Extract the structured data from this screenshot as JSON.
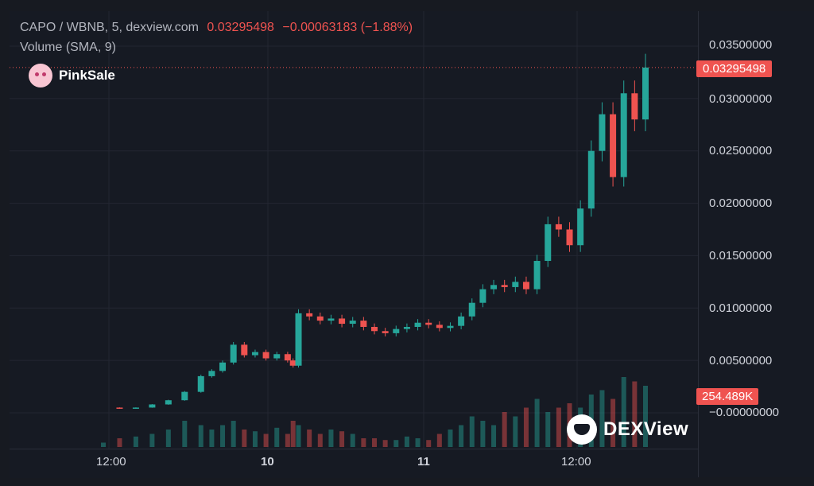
{
  "header": {
    "symbol": "CAPO / WBNB, 5, dexview.com",
    "last_price": "0.03295498",
    "change": "−0.00063183 (−1.88%)",
    "volume_indicator": "Volume (SMA, 9)"
  },
  "branding": {
    "pinksale": "PinkSale",
    "dexview": "DEXView"
  },
  "price_axis": {
    "ticks": [
      "0.03500000",
      "0.03000000",
      "0.02500000",
      "0.02000000",
      "0.01500000",
      "0.01000000",
      "0.00500000",
      "−0.00000000"
    ],
    "current_price_tag": "0.03295498",
    "volume_tag": "254.489K"
  },
  "time_axis": {
    "labels": [
      "12:00",
      "10",
      "11",
      "12:00"
    ]
  },
  "colors": {
    "up": "#26a69a",
    "down": "#ef5350",
    "background": "#161a23",
    "grid": "#232632",
    "text": "#d1d4dc"
  },
  "chart_data": {
    "type": "line",
    "title": "CAPO / WBNB, 5, dexview.com",
    "x_labels": [
      "12:00",
      "10",
      "11",
      "12:00"
    ],
    "ylim": [
      0,
      0.035
    ],
    "series": [
      {
        "name": "CAPO / WBNB",
        "x": [
          0,
          0.03,
          0.06,
          0.09,
          0.12,
          0.15,
          0.18,
          0.2,
          0.22,
          0.24,
          0.26,
          0.28,
          0.3,
          0.32,
          0.34,
          0.35,
          0.36,
          0.38,
          0.4,
          0.42,
          0.44,
          0.46,
          0.48,
          0.5,
          0.52,
          0.54,
          0.56,
          0.58,
          0.6,
          0.62,
          0.64,
          0.66,
          0.68,
          0.7,
          0.72,
          0.74,
          0.76,
          0.78,
          0.8,
          0.82,
          0.84,
          0.86,
          0.88,
          0.9,
          0.92,
          0.94,
          0.96,
          0.98,
          1.0
        ],
        "values": [
          0.0005,
          0.0004,
          0.0005,
          0.0008,
          0.0012,
          0.002,
          0.0035,
          0.004,
          0.0048,
          0.0065,
          0.0055,
          0.0058,
          0.0052,
          0.0056,
          0.005,
          0.0045,
          0.0095,
          0.0092,
          0.0088,
          0.009,
          0.0085,
          0.0088,
          0.0082,
          0.0078,
          0.0076,
          0.008,
          0.0082,
          0.0086,
          0.0084,
          0.0081,
          0.0083,
          0.0092,
          0.0105,
          0.0118,
          0.0122,
          0.012,
          0.0125,
          0.0118,
          0.0145,
          0.018,
          0.0175,
          0.016,
          0.0195,
          0.025,
          0.0285,
          0.0225,
          0.0305,
          0.028,
          0.03295498
        ]
      }
    ],
    "volume_series": {
      "name": "Volume",
      "relative_levels": [
        0.05,
        0.1,
        0.12,
        0.15,
        0.2,
        0.3,
        0.25,
        0.2,
        0.25,
        0.3,
        0.2,
        0.18,
        0.15,
        0.22,
        0.15,
        0.3,
        0.25,
        0.2,
        0.15,
        0.2,
        0.18,
        0.15,
        0.1,
        0.1,
        0.08,
        0.08,
        0.12,
        0.1,
        0.08,
        0.15,
        0.2,
        0.25,
        0.35,
        0.3,
        0.25,
        0.4,
        0.35,
        0.45,
        0.55,
        0.4,
        0.45,
        0.5,
        0.45,
        0.6,
        0.65,
        0.55,
        0.8,
        0.75,
        0.7
      ]
    },
    "grid": true
  }
}
